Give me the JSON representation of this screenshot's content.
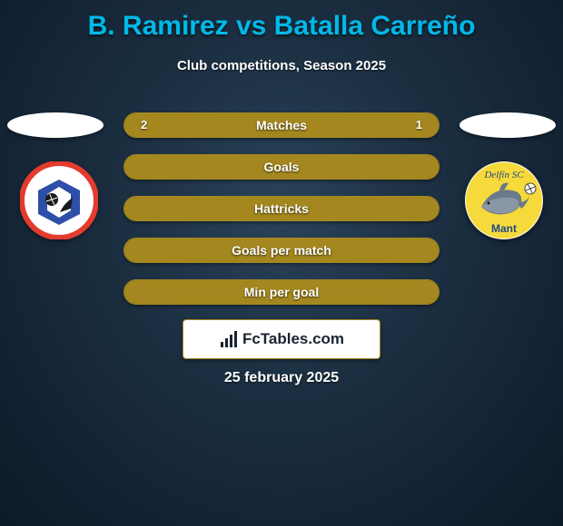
{
  "title": "B. Ramirez vs Batalla Carreño",
  "subtitle": "Club competitions, Season 2025",
  "colors": {
    "accent": "#00b9e8",
    "bar": "#a4881f",
    "text": "#ffffff",
    "bg_inner": "#2a425a",
    "bg_outer": "#0d1a28"
  },
  "stats": [
    {
      "label": "Matches",
      "left_val": "2",
      "right_val": "1",
      "left_pct": 66.6,
      "right_pct": 33.4,
      "show_vals": true
    },
    {
      "label": "Goals",
      "left_val": "",
      "right_val": "",
      "left_pct": 100,
      "right_pct": 0,
      "show_vals": false
    },
    {
      "label": "Hattricks",
      "left_val": "",
      "right_val": "",
      "left_pct": 100,
      "right_pct": 0,
      "show_vals": false
    },
    {
      "label": "Goals per match",
      "left_val": "",
      "right_val": "",
      "left_pct": 100,
      "right_pct": 0,
      "show_vals": false
    },
    {
      "label": "Min per goal",
      "left_val": "",
      "right_val": "",
      "left_pct": 100,
      "right_pct": 0,
      "show_vals": false
    }
  ],
  "brand": "FcTables.com",
  "date": "25 february 2025",
  "club_left": {
    "name": "Manta FC",
    "colors": {
      "ring": "#e33b2e",
      "panel": "#2e4fa8"
    }
  },
  "club_right": {
    "name": "Delfin SC",
    "label_top": "Delfín SC",
    "label_bottom": "Mant",
    "colors": {
      "bg": "#f6d93a",
      "dolphin": "#6b7a8a"
    }
  }
}
